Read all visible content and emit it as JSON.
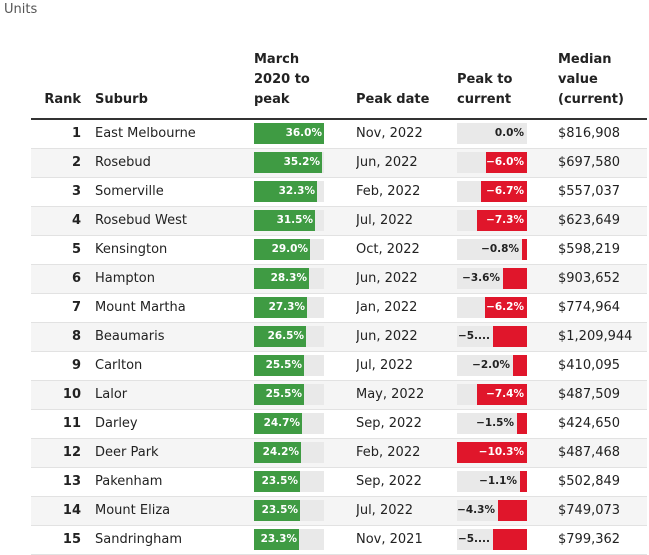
{
  "subtitle": "Units",
  "columns": {
    "rank": "Rank",
    "suburb": "Suburb",
    "rise": "March 2020 to peak",
    "peak_date": "Peak date",
    "change": "Peak to current",
    "median": "Median value (current)"
  },
  "colors": {
    "green": "#3f9b43",
    "red": "#e0162b",
    "track": "#e9e9e9"
  },
  "chart_data": {
    "type": "table",
    "rows": [
      {
        "rank": "1",
        "suburb": "East Melbourne",
        "rise": 36.0,
        "rise_label": "36.0%",
        "peak_date": "Nov, 2022",
        "change": 0.0,
        "change_label": "0.0%",
        "median": "$816,908"
      },
      {
        "rank": "2",
        "suburb": "Rosebud",
        "rise": 35.2,
        "rise_label": "35.2%",
        "peak_date": "Jun, 2022",
        "change": -6.0,
        "change_label": "−6.0%",
        "median": "$697,580"
      },
      {
        "rank": "3",
        "suburb": "Somerville",
        "rise": 32.3,
        "rise_label": "32.3%",
        "peak_date": "Feb, 2022",
        "change": -6.7,
        "change_label": "−6.7%",
        "median": "$557,037"
      },
      {
        "rank": "4",
        "suburb": "Rosebud West",
        "rise": 31.5,
        "rise_label": "31.5%",
        "peak_date": "Jul, 2022",
        "change": -7.3,
        "change_label": "−7.3%",
        "median": "$623,649"
      },
      {
        "rank": "5",
        "suburb": "Kensington",
        "rise": 29.0,
        "rise_label": "29.0%",
        "peak_date": "Oct, 2022",
        "change": -0.8,
        "change_label": "−0.8%",
        "median": "$598,219"
      },
      {
        "rank": "6",
        "suburb": "Hampton",
        "rise": 28.3,
        "rise_label": "28.3%",
        "peak_date": "Jun, 2022",
        "change": -3.6,
        "change_label": "−3.6%",
        "median": "$903,652"
      },
      {
        "rank": "7",
        "suburb": "Mount Martha",
        "rise": 27.3,
        "rise_label": "27.3%",
        "peak_date": "Jan, 2022",
        "change": -6.2,
        "change_label": "−6.2%",
        "median": "$774,964"
      },
      {
        "rank": "8",
        "suburb": "Beaumaris",
        "rise": 26.5,
        "rise_label": "26.5%",
        "peak_date": "Jun, 2022",
        "change": -5.0,
        "change_label": "−5....",
        "median": "$1,209,944"
      },
      {
        "rank": "9",
        "suburb": "Carlton",
        "rise": 25.5,
        "rise_label": "25.5%",
        "peak_date": "Jul, 2022",
        "change": -2.0,
        "change_label": "−2.0%",
        "median": "$410,095"
      },
      {
        "rank": "10",
        "suburb": "Lalor",
        "rise": 25.5,
        "rise_label": "25.5%",
        "peak_date": "May, 2022",
        "change": -7.4,
        "change_label": "−7.4%",
        "median": "$487,509"
      },
      {
        "rank": "11",
        "suburb": "Darley",
        "rise": 24.7,
        "rise_label": "24.7%",
        "peak_date": "Sep, 2022",
        "change": -1.5,
        "change_label": "−1.5%",
        "median": "$424,650"
      },
      {
        "rank": "12",
        "suburb": "Deer Park",
        "rise": 24.2,
        "rise_label": "24.2%",
        "peak_date": "Feb, 2022",
        "change": -10.3,
        "change_label": "−10.3%",
        "median": "$487,468"
      },
      {
        "rank": "13",
        "suburb": "Pakenham",
        "rise": 23.5,
        "rise_label": "23.5%",
        "peak_date": "Sep, 2022",
        "change": -1.1,
        "change_label": "−1.1%",
        "median": "$502,849"
      },
      {
        "rank": "14",
        "suburb": "Mount Eliza",
        "rise": 23.5,
        "rise_label": "23.5%",
        "peak_date": "Jul, 2022",
        "change": -4.3,
        "change_label": "−4.3%",
        "median": "$749,073"
      },
      {
        "rank": "15",
        "suburb": "Sandringham",
        "rise": 23.3,
        "rise_label": "23.3%",
        "peak_date": "Nov, 2021",
        "change": -5.0,
        "change_label": "−5....",
        "median": "$799,362"
      }
    ]
  }
}
